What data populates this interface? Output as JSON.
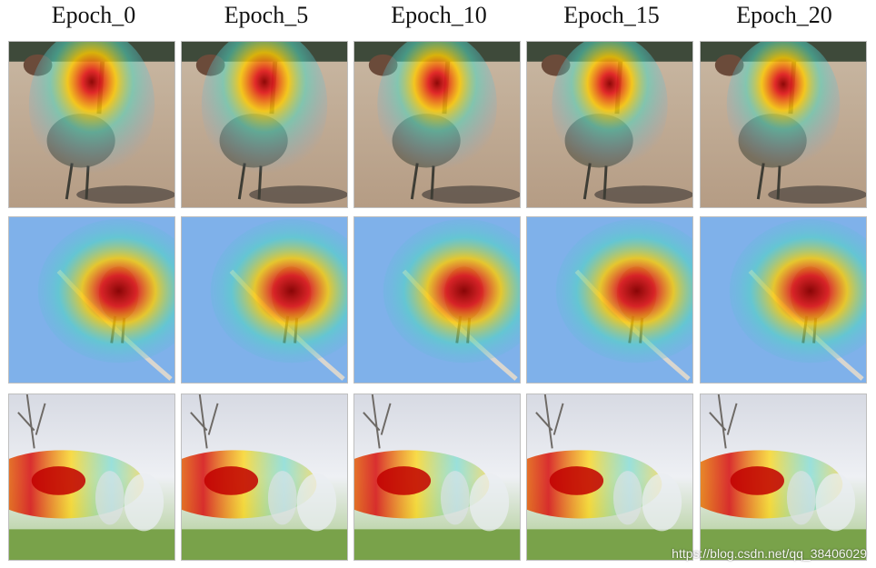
{
  "columns": [
    "Epoch_0",
    "Epoch_5",
    "Epoch_10",
    "Epoch_15",
    "Epoch_20"
  ],
  "rows": [
    "ostrich",
    "bird-on-branch",
    "dogs"
  ],
  "watermark": "https://blog.csdn.net/qq_38406029"
}
